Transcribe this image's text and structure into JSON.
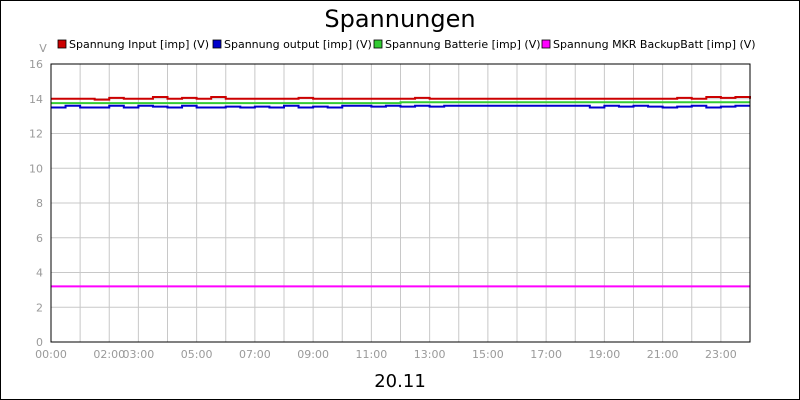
{
  "chart_data": {
    "type": "line",
    "title": "Spannungen",
    "ylabel": "V",
    "xlabel": "20.11",
    "ylim": [
      0,
      16
    ],
    "xlim": [
      0,
      24
    ],
    "y_ticks": [
      0,
      2,
      4,
      6,
      8,
      10,
      12,
      14,
      16
    ],
    "x_ticks": [
      {
        "h": 0,
        "label": "00:00"
      },
      {
        "h": 2,
        "label": "02:00"
      },
      {
        "h": 3,
        "label": "03:00"
      },
      {
        "h": 5,
        "label": "05:00"
      },
      {
        "h": 7,
        "label": "07:00"
      },
      {
        "h": 9,
        "label": "09:00"
      },
      {
        "h": 11,
        "label": "11:00"
      },
      {
        "h": 13,
        "label": "13:00"
      },
      {
        "h": 15,
        "label": "15:00"
      },
      {
        "h": 17,
        "label": "17:00"
      },
      {
        "h": 19,
        "label": "19:00"
      },
      {
        "h": 21,
        "label": "21:00"
      },
      {
        "h": 23,
        "label": "23:00"
      }
    ],
    "grid": true,
    "legend_position": "top",
    "x": [
      0,
      0.5,
      1,
      1.5,
      2,
      2.5,
      3,
      3.5,
      4,
      4.5,
      5,
      5.5,
      6,
      6.5,
      7,
      7.5,
      8,
      8.5,
      9,
      9.5,
      10,
      10.5,
      11,
      11.5,
      12,
      12.5,
      13,
      13.5,
      14,
      14.5,
      15,
      15.5,
      16,
      16.5,
      17,
      17.5,
      18,
      18.5,
      19,
      19.5,
      20,
      20.5,
      21,
      21.5,
      22,
      22.5,
      23,
      23.5,
      24
    ],
    "series": [
      {
        "name": "Spannung Input [imp] (V)",
        "color": "#cc0000",
        "values": [
          14.0,
          14.0,
          14.0,
          13.95,
          14.05,
          14.0,
          14.0,
          14.1,
          14.0,
          14.05,
          14.0,
          14.1,
          14.0,
          14.0,
          14.0,
          14.0,
          14.0,
          14.05,
          14.0,
          14.0,
          14.0,
          14.0,
          14.0,
          14.0,
          14.0,
          14.05,
          14.0,
          14.0,
          14.0,
          14.0,
          14.0,
          14.0,
          14.0,
          14.0,
          14.0,
          14.0,
          14.0,
          14.0,
          14.0,
          14.0,
          14.0,
          14.0,
          14.0,
          14.05,
          14.0,
          14.1,
          14.05,
          14.1,
          14.0
        ]
      },
      {
        "name": "Spannung output [imp] (V)",
        "color": "#0000cc",
        "values": [
          13.5,
          13.6,
          13.5,
          13.5,
          13.6,
          13.5,
          13.6,
          13.55,
          13.5,
          13.6,
          13.5,
          13.5,
          13.55,
          13.5,
          13.55,
          13.5,
          13.6,
          13.5,
          13.55,
          13.5,
          13.6,
          13.6,
          13.55,
          13.6,
          13.55,
          13.6,
          13.55,
          13.6,
          13.6,
          13.6,
          13.6,
          13.6,
          13.6,
          13.6,
          13.6,
          13.6,
          13.6,
          13.5,
          13.6,
          13.55,
          13.6,
          13.55,
          13.5,
          13.55,
          13.6,
          13.5,
          13.55,
          13.6,
          13.6
        ]
      },
      {
        "name": "Spannung Batterie [imp] (V)",
        "color": "#33cc33",
        "values": [
          13.75,
          13.75,
          13.75,
          13.75,
          13.75,
          13.75,
          13.75,
          13.75,
          13.75,
          13.75,
          13.75,
          13.75,
          13.75,
          13.75,
          13.75,
          13.75,
          13.75,
          13.75,
          13.75,
          13.75,
          13.75,
          13.75,
          13.75,
          13.75,
          13.8,
          13.8,
          13.8,
          13.8,
          13.8,
          13.8,
          13.8,
          13.8,
          13.8,
          13.8,
          13.8,
          13.8,
          13.8,
          13.8,
          13.8,
          13.8,
          13.8,
          13.8,
          13.8,
          13.8,
          13.8,
          13.8,
          13.8,
          13.8,
          13.8
        ]
      },
      {
        "name": "Spannung MKR BackupBatt [imp] (V)",
        "color": "#ff00ff",
        "values": [
          3.2,
          3.2,
          3.2,
          3.2,
          3.2,
          3.2,
          3.2,
          3.2,
          3.2,
          3.2,
          3.2,
          3.2,
          3.2,
          3.2,
          3.2,
          3.2,
          3.2,
          3.2,
          3.2,
          3.2,
          3.2,
          3.2,
          3.2,
          3.2,
          3.2,
          3.2,
          3.2,
          3.2,
          3.2,
          3.2,
          3.2,
          3.2,
          3.2,
          3.2,
          3.2,
          3.2,
          3.2,
          3.2,
          3.2,
          3.2,
          3.2,
          3.2,
          3.2,
          3.2,
          3.2,
          3.2,
          3.2,
          3.2,
          3.2
        ]
      }
    ]
  }
}
